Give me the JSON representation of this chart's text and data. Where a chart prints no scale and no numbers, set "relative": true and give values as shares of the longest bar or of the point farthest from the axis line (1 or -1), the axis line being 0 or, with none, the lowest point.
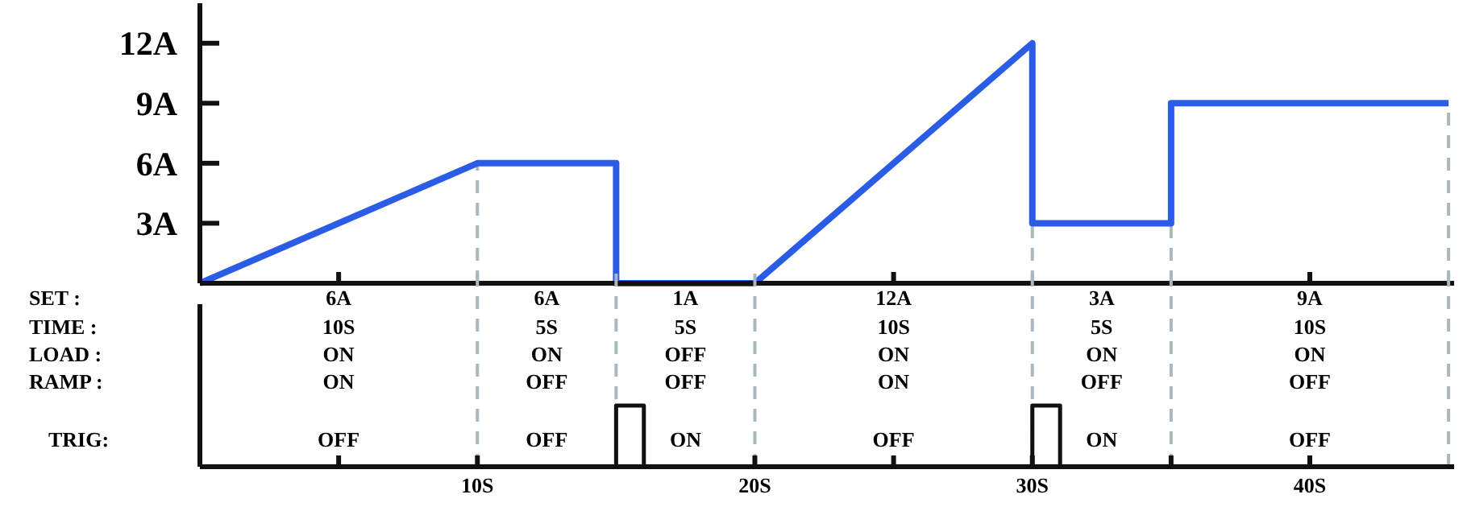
{
  "chart_data": [
    {
      "type": "line",
      "xlim": [
        0,
        45.2
      ],
      "ylim": [
        0,
        14
      ],
      "tick_labels": "y",
      "xticks": [
        {
          "value": 5,
          "label": null
        },
        {
          "value": 25,
          "label": null
        },
        {
          "value": 40,
          "label": null
        }
      ],
      "yticks": [
        {
          "value": 3,
          "label": "3A"
        },
        {
          "value": 6,
          "label": "6A"
        },
        {
          "value": 9,
          "label": "9A"
        },
        {
          "value": 12,
          "label": "12A"
        }
      ],
      "series": [
        {
          "color": "#2b5ce6",
          "x": [
            0,
            10,
            15,
            15,
            20,
            30,
            30,
            35,
            35,
            45
          ],
          "values": [
            0,
            6,
            6,
            0,
            0,
            12,
            3,
            3,
            9,
            9
          ]
        }
      ],
      "ref_lines": [
        {
          "axis": "x",
          "value": 10,
          "color": "#a9b8bf",
          "line_style": "dashed"
        },
        {
          "axis": "x",
          "value": 30,
          "color": "#a9b8bf",
          "line_style": "dashed"
        },
        {
          "axis": "x",
          "value": 35,
          "color": "#a9b8bf",
          "line_style": "dashed"
        },
        {
          "axis": "x",
          "value": 45,
          "color": "#a9b8bf",
          "line_style": "dashed"
        }
      ],
      "grid": false,
      "marker": "none",
      "line_style": "solid"
    },
    {
      "type": "step",
      "xlim": [
        0,
        45.2
      ],
      "relative": true,
      "xticks": [
        {
          "value": 5,
          "label": null
        },
        {
          "value": 10,
          "label": "10S"
        },
        {
          "value": 20,
          "label": "20S"
        },
        {
          "value": 25,
          "label": null
        },
        {
          "value": 30,
          "label": "30S"
        },
        {
          "value": 35,
          "label": null
        },
        {
          "value": 40,
          "label": "40S"
        }
      ],
      "y_categories": [
        "SET :",
        "TIME :",
        "LOAD :",
        "RAMP :",
        "TRIG:"
      ],
      "cell_labels": [
        [
          "6A",
          "6A",
          "1A",
          "12A",
          "3A",
          "9A"
        ],
        [
          "10S",
          "5S",
          "5S",
          "10S",
          "5S",
          "10S"
        ],
        [
          "ON",
          "ON",
          "OFF",
          "ON",
          "ON",
          "ON"
        ],
        [
          "ON",
          "OFF",
          "OFF",
          "ON",
          "OFF",
          "OFF"
        ],
        [
          "OFF",
          "OFF",
          "ON",
          "OFF",
          "ON",
          "OFF"
        ]
      ],
      "series": [
        {
          "type": "step",
          "color": "#111111",
          "x": [
            15,
            15,
            16,
            16
          ],
          "values": [
            0,
            1,
            1,
            0
          ]
        },
        {
          "type": "step",
          "color": "#111111",
          "x": [
            30,
            30,
            31,
            31
          ],
          "values": [
            0,
            1,
            1,
            0
          ]
        }
      ],
      "ref_lines": [
        {
          "axis": "x",
          "value": 10,
          "color": "#a9b8bf",
          "line_style": "dashed"
        },
        {
          "axis": "x",
          "value": 15,
          "color": "#a9b8bf",
          "line_style": "dashed"
        },
        {
          "axis": "x",
          "value": 20,
          "color": "#a9b8bf",
          "line_style": "dashed"
        },
        {
          "axis": "x",
          "value": 30,
          "color": "#a9b8bf",
          "line_style": "dashed"
        },
        {
          "axis": "x",
          "value": 35,
          "color": "#a9b8bf",
          "line_style": "dashed"
        },
        {
          "axis": "x",
          "value": 45,
          "color": "#a9b8bf",
          "line_style": "dashed"
        }
      ]
    }
  ]
}
